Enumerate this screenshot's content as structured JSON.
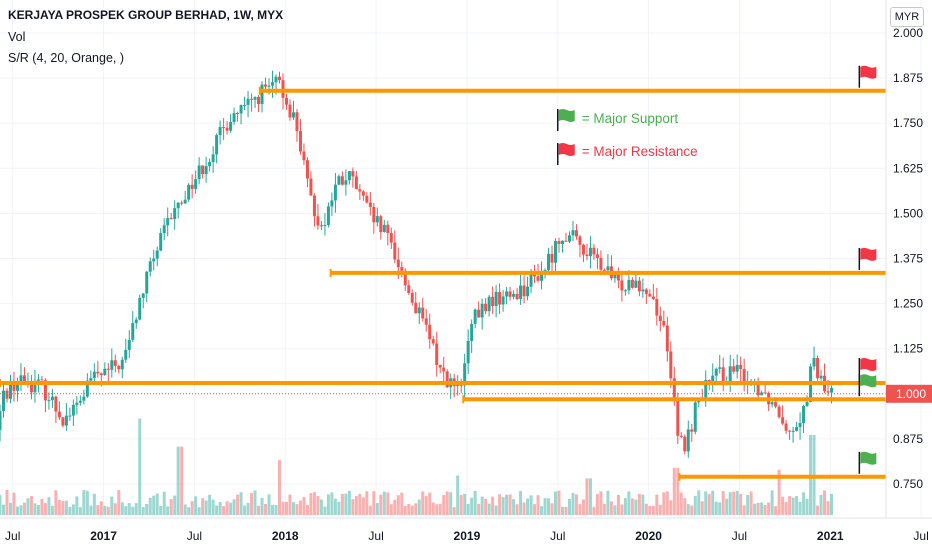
{
  "header": {
    "symbol_title": "KERJAYA PROSPEK GROUP BERHAD, 1W, MYX",
    "volume_label": "Vol",
    "indicator_label": "S/R (4, 20, Orange, )"
  },
  "currency_button": "MYR",
  "colors": {
    "up": "#26a69a",
    "down": "#ef5350",
    "level_line": "#ff9800",
    "support_flag": "#4caf50",
    "resistance_flag": "#f23645",
    "price_tag": "#ef5350"
  },
  "legend": {
    "support_label": "= Major Support",
    "resistance_label": "= Major Resistance",
    "support_icon": "green-flag-icon",
    "resistance_icon": "red-flag-icon"
  },
  "chart_data": {
    "type": "candlestick",
    "symbol": "KERJAYA PROSPEK GROUP BERHAD",
    "interval": "1W",
    "exchange": "MYX",
    "currency": "MYR",
    "y_axis": {
      "range": [
        0.655,
        2.02
      ],
      "ticks": [
        "2.000",
        "1.875",
        "1.750",
        "1.625",
        "1.500",
        "1.375",
        "1.250",
        "1.125",
        "1.000",
        "0.875",
        "0.750"
      ],
      "tick_values": [
        2.0,
        1.875,
        1.75,
        1.625,
        1.5,
        1.375,
        1.25,
        1.125,
        1.0,
        0.875,
        0.75
      ]
    },
    "x_axis": {
      "labels": [
        {
          "text": "Jul",
          "t": 2016.5,
          "bold": false
        },
        {
          "text": "2017",
          "t": 2017.0,
          "bold": true
        },
        {
          "text": "Jul",
          "t": 2017.5,
          "bold": false
        },
        {
          "text": "2018",
          "t": 2018.0,
          "bold": true
        },
        {
          "text": "Jul",
          "t": 2018.5,
          "bold": false
        },
        {
          "text": "2019",
          "t": 2019.0,
          "bold": true
        },
        {
          "text": "Jul",
          "t": 2019.5,
          "bold": false
        },
        {
          "text": "2020",
          "t": 2020.0,
          "bold": true
        },
        {
          "text": "Jul",
          "t": 2020.5,
          "bold": false
        },
        {
          "text": "2021",
          "t": 2021.0,
          "bold": true
        },
        {
          "text": "Jul",
          "t": 2021.5,
          "bold": false
        }
      ],
      "range": [
        2016.43,
        2021.56
      ]
    },
    "last_price": {
      "value": 1.0,
      "label": "1.000"
    },
    "price_path": [
      [
        2016.43,
        0.9
      ],
      [
        2016.47,
        1.0
      ],
      [
        2016.55,
        1.04
      ],
      [
        2016.68,
        1.02
      ],
      [
        2016.8,
        0.93
      ],
      [
        2016.88,
        0.97
      ],
      [
        2016.95,
        1.04
      ],
      [
        2017.03,
        1.06
      ],
      [
        2017.13,
        1.09
      ],
      [
        2017.2,
        1.22
      ],
      [
        2017.28,
        1.36
      ],
      [
        2017.38,
        1.48
      ],
      [
        2017.5,
        1.58
      ],
      [
        2017.6,
        1.66
      ],
      [
        2017.72,
        1.77
      ],
      [
        2017.8,
        1.79
      ],
      [
        2017.9,
        1.84
      ],
      [
        2017.98,
        1.86
      ],
      [
        2018.08,
        1.75
      ],
      [
        2018.15,
        1.55
      ],
      [
        2018.22,
        1.46
      ],
      [
        2018.3,
        1.58
      ],
      [
        2018.38,
        1.6
      ],
      [
        2018.48,
        1.5
      ],
      [
        2018.6,
        1.42
      ],
      [
        2018.7,
        1.28
      ],
      [
        2018.8,
        1.17
      ],
      [
        2018.88,
        1.06
      ],
      [
        2018.98,
        1.0
      ],
      [
        2019.05,
        1.2
      ],
      [
        2019.15,
        1.26
      ],
      [
        2019.25,
        1.27
      ],
      [
        2019.35,
        1.3
      ],
      [
        2019.45,
        1.35
      ],
      [
        2019.55,
        1.45
      ],
      [
        2019.65,
        1.41
      ],
      [
        2019.75,
        1.36
      ],
      [
        2019.85,
        1.3
      ],
      [
        2019.95,
        1.32
      ],
      [
        2020.05,
        1.26
      ],
      [
        2020.12,
        1.15
      ],
      [
        2020.18,
        0.88
      ],
      [
        2020.22,
        0.85
      ],
      [
        2020.3,
        1.0
      ],
      [
        2020.4,
        1.05
      ],
      [
        2020.5,
        1.06
      ],
      [
        2020.6,
        1.03
      ],
      [
        2020.7,
        0.98
      ],
      [
        2020.8,
        0.9
      ],
      [
        2020.88,
        0.96
      ],
      [
        2020.92,
        1.09
      ],
      [
        2021.0,
        1.0
      ]
    ],
    "first_candle_t": 2016.43,
    "last_candle_t": 2021.01,
    "volume_spikes": [
      {
        "t": 2017.2,
        "level": 1.0
      },
      {
        "t": 2017.42,
        "level": 0.71
      },
      {
        "t": 2017.97,
        "level": 0.57
      },
      {
        "t": 2018.95,
        "level": 0.41
      },
      {
        "t": 2019.67,
        "level": 0.38
      },
      {
        "t": 2020.15,
        "level": 0.49
      },
      {
        "t": 2020.72,
        "level": 0.47
      },
      {
        "t": 2020.9,
        "level": 0.83
      }
    ],
    "levels": [
      {
        "name": "resistance-1.84",
        "y": 1.84,
        "t_start": 2017.86,
        "flag": "red"
      },
      {
        "name": "resistance-1.335",
        "y": 1.335,
        "t_start": 2018.25,
        "flag": "red"
      },
      {
        "name": "resistance-1.03",
        "y": 1.03,
        "t_start": 2016.43,
        "flag": "red"
      },
      {
        "name": "support-0.985",
        "y": 0.985,
        "t_start": 2018.98,
        "flag": "green"
      },
      {
        "name": "support-0.77",
        "y": 0.77,
        "t_start": 2020.17,
        "flag": "green"
      }
    ],
    "flags_t": 2021.16,
    "legend_t": 2019.5
  }
}
